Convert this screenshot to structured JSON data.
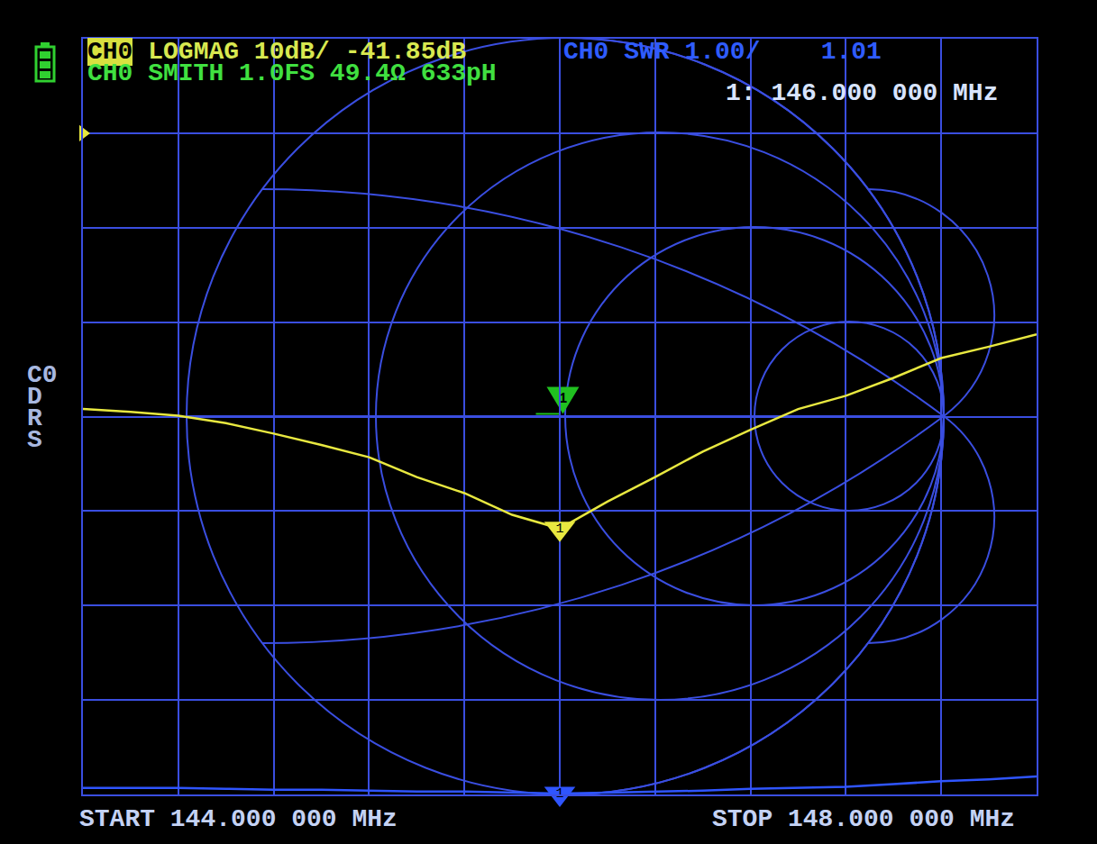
{
  "chart_data": {
    "type": "line",
    "annotations": [
      "CH0 LOGMAG 10dB/ -41.85dB",
      "CH0 SMITH 1.0FS 49.4Ω 633pH",
      "CH0 SWR 1.00/    1.01",
      "1: 146.000 000 MHz",
      "START 144.000 000 MHz",
      "STOP 148.000 000 MHz"
    ],
    "side_label": [
      "C0",
      "D",
      "R",
      "S"
    ],
    "x": [
      144.0,
      144.2,
      144.4,
      144.6,
      144.8,
      145.0,
      145.2,
      145.4,
      145.6,
      145.8,
      146.0,
      146.2,
      146.4,
      146.6,
      146.8,
      147.0,
      147.2,
      147.4,
      147.6,
      147.8,
      148.0
    ],
    "xlim": [
      144,
      148
    ],
    "xticks": [
      144,
      144.4,
      144.8,
      145.2,
      145.6,
      146,
      146.4,
      146.8,
      147.2,
      147.6,
      148
    ],
    "ylim": [
      -70,
      10
    ],
    "yticks": [
      -70,
      -60,
      -50,
      -40,
      -30,
      -20,
      -10,
      0,
      10
    ],
    "y2lim": [
      1,
      9
    ],
    "y2ticks": [
      1,
      2,
      3,
      4,
      5,
      6,
      7,
      8,
      9
    ],
    "grid": true,
    "tick_labels": false,
    "ref_level": 0,
    "series": [
      {
        "color": "#e8e840",
        "values": [
          -29.2,
          -29.5,
          -29.9,
          -30.7,
          -31.8,
          -33.0,
          -34.3,
          -36.4,
          -38.1,
          -40.4,
          -41.85,
          -39.0,
          -36.4,
          -33.7,
          -31.4,
          -29.2,
          -27.8,
          -25.9,
          -23.8,
          -22.6,
          -21.3
        ]
      },
      {
        "color": "#2f55ff",
        "axis": "y2",
        "values": [
          1.07,
          1.07,
          1.07,
          1.06,
          1.05,
          1.05,
          1.04,
          1.03,
          1.03,
          1.02,
          1.01,
          1.02,
          1.03,
          1.04,
          1.06,
          1.07,
          1.08,
          1.11,
          1.14,
          1.16,
          1.19
        ]
      }
    ],
    "markers": [
      {
        "label": "1",
        "x": 146.0
      }
    ],
    "smith_marker": {
      "label": "1",
      "real": -0.006,
      "imag": 0.006
    }
  }
}
